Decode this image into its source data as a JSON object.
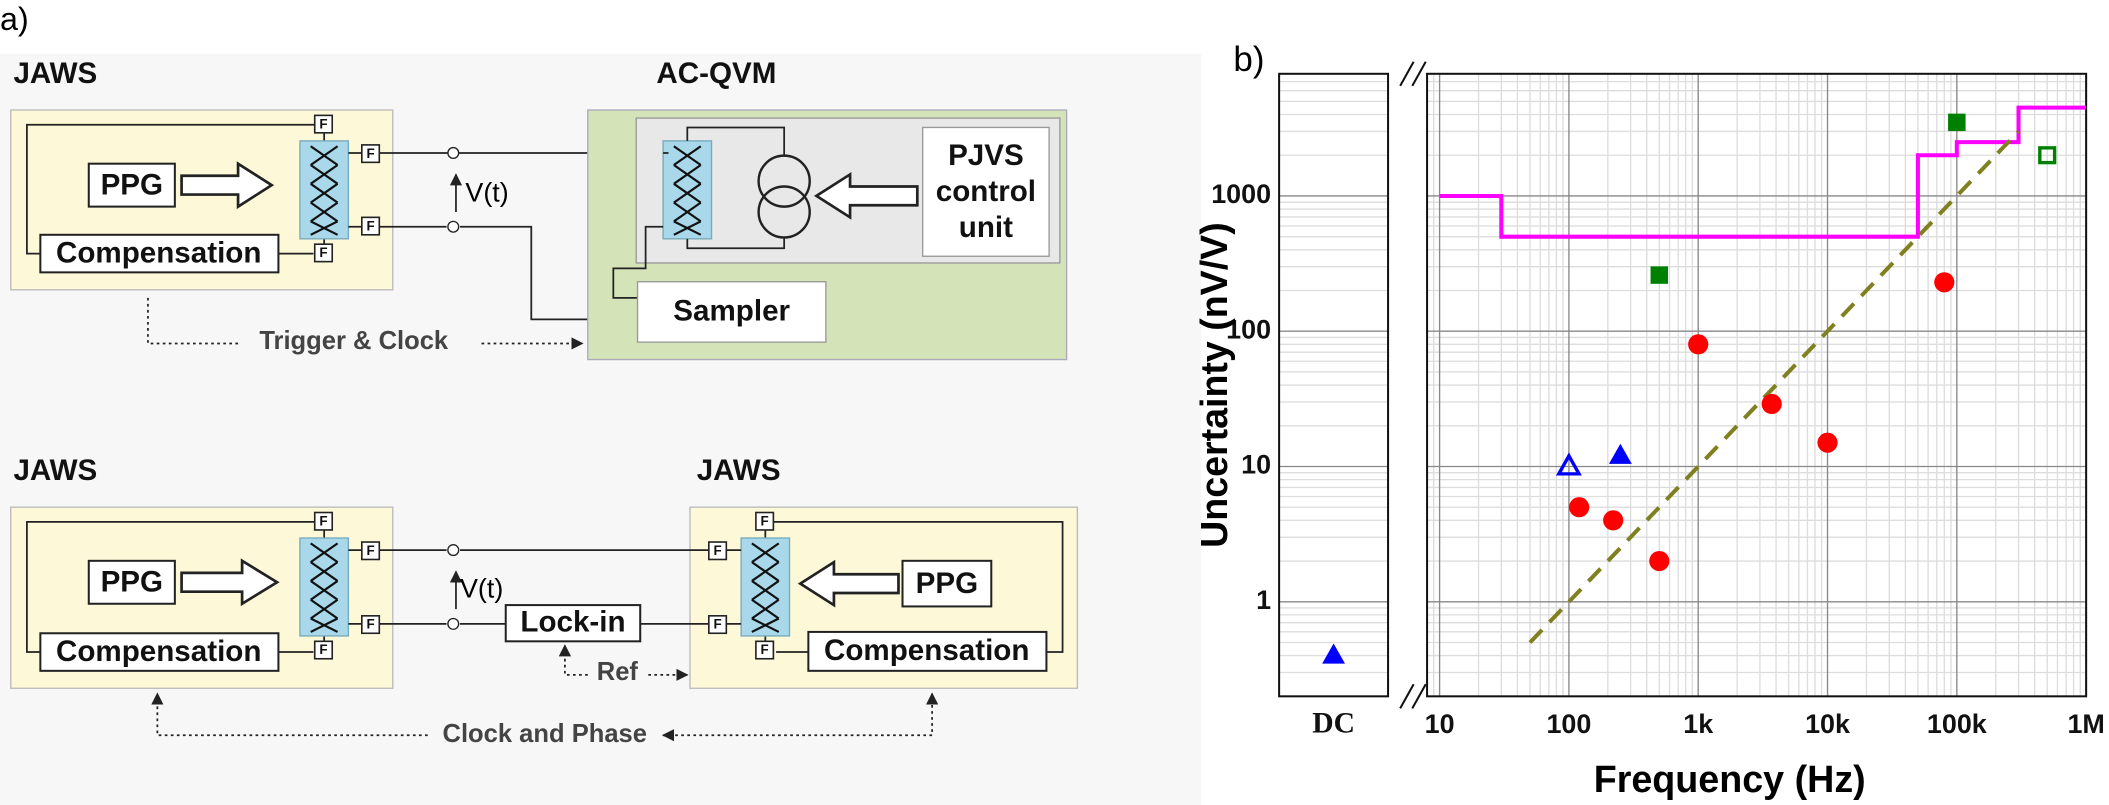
{
  "panel_a": {
    "label": "a)",
    "filter": "F",
    "top": {
      "source_title": "JAWS",
      "meter_title": "AC-QVM",
      "ppg": "PPG",
      "compensation": "Compensation",
      "voltage": "V(t)",
      "pjvs": [
        "PJVS",
        "control",
        "unit"
      ],
      "sampler": "Sampler",
      "sync": "Trigger & Clock"
    },
    "bottom": {
      "left_title": "JAWS",
      "right_title": "JAWS",
      "left_ppg": "PPG",
      "left_compensation": "Compensation",
      "right_ppg": "PPG",
      "right_compensation": "Compensation",
      "voltage": "V(t)",
      "detector": "Lock-in",
      "reference": "Ref",
      "sync": "Clock and Phase"
    }
  },
  "chart_data": {
    "type": "scatter",
    "panel_label": "b)",
    "x_label": "Frequency (Hz)",
    "y_label": "Uncertainty (nV/V)",
    "x_log": true,
    "y_log": true,
    "grid": true,
    "minor_grid": true,
    "xlim": [
      8,
      1000000
    ],
    "ylim": [
      0.2,
      8000
    ],
    "xticks": [
      10,
      100,
      {
        "value": 1000,
        "label": "1k"
      },
      {
        "value": 10000,
        "label": "10k"
      },
      {
        "value": 100000,
        "label": "100k"
      },
      {
        "value": 1000000,
        "label": "1M"
      }
    ],
    "yticks": [
      1,
      10,
      100,
      1000
    ],
    "break_label": "DC",
    "series": [
      {
        "marker": "line",
        "color": "#ff00ff",
        "x": [
          10,
          30,
          30,
          50000,
          50000,
          100000,
          100000,
          300000,
          300000,
          1000000
        ],
        "values": [
          1000,
          1000,
          500,
          500,
          2000,
          2000,
          2500,
          2500,
          4500,
          4500
        ]
      },
      {
        "marker": "dashed",
        "color": "#808020",
        "x": [
          50,
          300000
        ],
        "values": [
          0.5,
          3000
        ]
      },
      {
        "marker": "circle",
        "color": "#ff0000",
        "x": [
          120,
          220,
          500,
          1000,
          3700,
          10000,
          80000
        ],
        "values": [
          5,
          4,
          2,
          80,
          29,
          15,
          230
        ]
      },
      {
        "marker": "square",
        "color": "#008000",
        "x": [
          500,
          100000
        ],
        "values": [
          260,
          3500
        ]
      },
      {
        "marker": "open-square",
        "color": "#008000",
        "x": [
          500000
        ],
        "values": [
          2000
        ]
      },
      {
        "marker": "triangle",
        "color": "#0000ff",
        "x": [
          250
        ],
        "values": [
          12
        ]
      },
      {
        "marker": "open-triangle",
        "color": "#0000ff",
        "x": [
          100
        ],
        "values": [
          10
        ]
      },
      {
        "marker": "triangle",
        "color": "#0000ff",
        "x": [
          "DC"
        ],
        "values": [
          0.4
        ]
      }
    ]
  }
}
